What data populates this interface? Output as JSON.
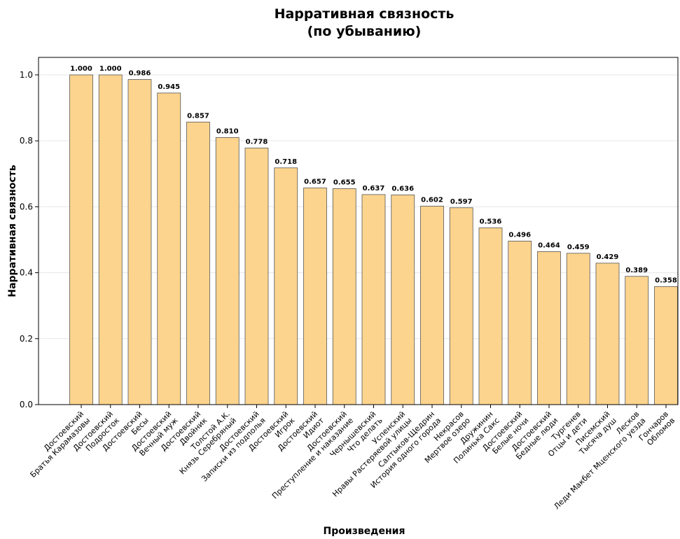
{
  "chart_data": {
    "type": "bar",
    "title": "Нарративная связность",
    "subtitle": "(по убыванию)",
    "x_label": "Произведения",
    "y_label": "Нарративная связность",
    "categories": [
      [
        "Достоевский",
        "Братья Карамазовы"
      ],
      [
        "Достоевский",
        "Подросток"
      ],
      [
        "Достоевский",
        "Бесы"
      ],
      [
        "Достоевский",
        "Вечный муж"
      ],
      [
        "Достоевский",
        "Двойник"
      ],
      [
        "Толстой А.К.",
        "Князь Серебряный"
      ],
      [
        "Достоевский",
        "Записки из подполья"
      ],
      [
        "Достоевский",
        "Игрок"
      ],
      [
        "Достоевский",
        "Идиот"
      ],
      [
        "Достоевский",
        "Преступление и наказание"
      ],
      [
        "Чернышевский",
        "Что делать"
      ],
      [
        "Успенский",
        "Нравы Растеряевой улицы"
      ],
      [
        "Салтыков-Щедрин",
        "История одного города"
      ],
      [
        "Некрасов",
        "Мертвое озеро"
      ],
      [
        "Дружинин",
        "Полинька Сакс"
      ],
      [
        "Достоевский",
        "Белые ночи"
      ],
      [
        "Достоевский",
        "Бедные люди"
      ],
      [
        "Тургенев",
        "Отцы и дети"
      ],
      [
        "Писемский",
        "Тысяча душ"
      ],
      [
        "Лесков",
        "Леди Макбет Мценского уезда"
      ],
      [
        "Гончаров",
        "Обломов"
      ]
    ],
    "values": [
      1.0,
      1.0,
      0.986,
      0.945,
      0.857,
      0.81,
      0.778,
      0.718,
      0.657,
      0.655,
      0.637,
      0.636,
      0.602,
      0.597,
      0.536,
      0.496,
      0.464,
      0.459,
      0.429,
      0.389,
      0.358
    ],
    "value_labels": [
      "1.000",
      "1.000",
      "0.986",
      "0.945",
      "0.857",
      "0.810",
      "0.778",
      "0.718",
      "0.657",
      "0.655",
      "0.637",
      "0.636",
      "0.602",
      "0.597",
      "0.536",
      "0.496",
      "0.464",
      "0.459",
      "0.429",
      "0.389",
      "0.358"
    ],
    "color": "#fdd48e",
    "edge_color": "#555555",
    "ylim": [
      0,
      1.053
    ],
    "yticks": [
      {
        "value": 0,
        "label": "0.0"
      },
      {
        "value": 0.2,
        "label": "0.2"
      },
      {
        "value": 0.4,
        "label": "0.4"
      },
      {
        "value": 0.6,
        "label": "0.6"
      },
      {
        "value": 0.8,
        "label": "0.8"
      },
      {
        "value": 1,
        "label": "1.0"
      }
    ],
    "grid": true
  }
}
